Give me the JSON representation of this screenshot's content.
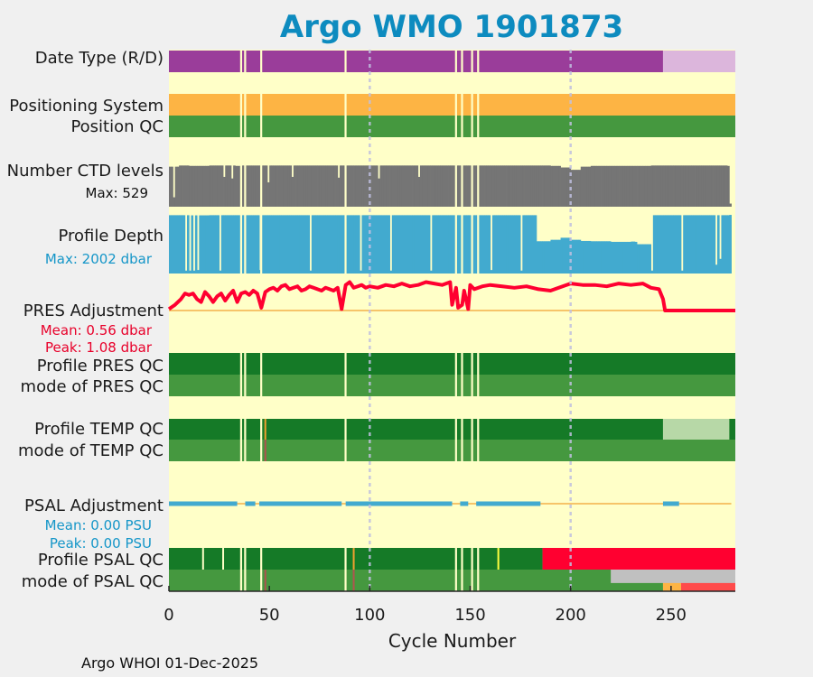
{
  "chart_data": {
    "type": "heatmap",
    "title": "Argo WMO 1901873",
    "xlabel": "Cycle Number",
    "xlim": [
      0,
      282
    ],
    "xticks": [
      0,
      50,
      100,
      150,
      200,
      250
    ],
    "dashed_gridlines_x": [
      100,
      200
    ],
    "footer": "Argo WHOI 01-Dec-2025",
    "missing_cycles": [
      35,
      37,
      45,
      87,
      142,
      145,
      150,
      153
    ],
    "colors": {
      "background": "#ffffc8",
      "figure_bg": "#f0f0f0",
      "title": "#0d8bbf",
      "delayed_mode": "#9a3d9a",
      "realtime_mode": "#dcb6dc",
      "positioning": "#fdb444",
      "qc_good": "#45983f",
      "qc_profile_A": "#157a27",
      "qc_profile_light": "#b7d8a7",
      "qc_bad": "#ff0030",
      "qc_probably_bad": "#f0a030",
      "qc_grey": "#c0c0c0",
      "qc_orange": "#fdb444",
      "qc_red_light": "#ff4b4b",
      "ctd": "#757575",
      "depth": "#42aacf",
      "pres_adj": "#ff0030",
      "psal_adj": "#42aacf",
      "zero_line": "#f0a030",
      "grid": "#c0c0e0"
    },
    "rows": {
      "date_type": {
        "label": "Date Type (R/D)",
        "segments": [
          {
            "from": 0,
            "to": 246,
            "value": "D"
          },
          {
            "from": 246,
            "to": 282,
            "value": "R"
          }
        ]
      },
      "positioning_system": {
        "label": "Positioning System",
        "segments": [
          {
            "from": 0,
            "to": 282,
            "value": "GPS"
          }
        ]
      },
      "position_qc": {
        "label": "Position QC",
        "segments": [
          {
            "from": 0,
            "to": 282,
            "value": "1"
          }
        ]
      },
      "ctd_levels": {
        "label": "Number CTD levels",
        "max_text": "Max: 529",
        "max": 529,
        "cycles": [
          0,
          5,
          10,
          20,
          33,
          36,
          40,
          46,
          50,
          60,
          70,
          80,
          90,
          100,
          110,
          120,
          130,
          140,
          146,
          155,
          160,
          170,
          180,
          185,
          190,
          195,
          200,
          205,
          210,
          220,
          230,
          240,
          245,
          250,
          260,
          270,
          278,
          279
        ],
        "values": [
          510,
          525,
          520,
          525,
          520,
          525,
          525,
          525,
          525,
          525,
          525,
          525,
          525,
          525,
          525,
          525,
          525,
          525,
          525,
          525,
          525,
          525,
          525,
          525,
          520,
          500,
          470,
          510,
          520,
          520,
          520,
          525,
          525,
          525,
          525,
          525,
          520,
          40
        ],
        "dips": [
          {
            "cycle": 2,
            "value": 120
          },
          {
            "cycle": 27,
            "value": 380
          },
          {
            "cycle": 31,
            "value": 360
          },
          {
            "cycle": 49,
            "value": 310
          },
          {
            "cycle": 61,
            "value": 380
          },
          {
            "cycle": 84,
            "value": 370
          },
          {
            "cycle": 104,
            "value": 360
          },
          {
            "cycle": 124,
            "value": 380
          }
        ]
      },
      "profile_depth": {
        "label": "Profile Depth",
        "max_text": "Max: 2002 dbar",
        "max": 2002,
        "cycles": [
          0,
          5,
          10,
          20,
          40,
          60,
          80,
          100,
          120,
          140,
          160,
          180,
          182,
          183,
          185,
          190,
          195,
          200,
          205,
          210,
          220,
          230,
          232,
          233,
          240,
          250,
          260,
          270,
          276,
          278,
          279
        ],
        "values": [
          1990,
          1990,
          1985,
          1990,
          1990,
          1990,
          1990,
          1990,
          1990,
          1990,
          1990,
          1990,
          1990,
          1100,
          1100,
          1150,
          1220,
          1150,
          1110,
          1100,
          1080,
          1090,
          1080,
          1000,
          1990,
          1990,
          1990,
          1990,
          1990,
          1990,
          2000
        ],
        "dips": [
          {
            "cycle": 8,
            "value": 100
          },
          {
            "cycle": 10,
            "value": 100
          },
          {
            "cycle": 12,
            "value": 100
          },
          {
            "cycle": 14,
            "value": 120
          },
          {
            "cycle": 25,
            "value": 100
          },
          {
            "cycle": 45,
            "value": 120
          },
          {
            "cycle": 70,
            "value": 100
          },
          {
            "cycle": 95,
            "value": 100
          },
          {
            "cycle": 110,
            "value": 100
          },
          {
            "cycle": 130,
            "value": 100
          },
          {
            "cycle": 160,
            "value": 120
          },
          {
            "cycle": 175,
            "value": 100
          },
          {
            "cycle": 240,
            "value": 100
          },
          {
            "cycle": 255,
            "value": 100
          },
          {
            "cycle": 272,
            "value": 300
          },
          {
            "cycle": 274,
            "value": 500
          }
        ]
      },
      "pres_adjustment": {
        "label": "PRES Adjustment",
        "mean_text": "Mean: 0.56 dbar",
        "peak_text": "Peak: 1.08 dbar",
        "mean": 0.56,
        "peak": 1.08,
        "cycles": [
          0,
          3,
          6,
          8,
          10,
          12,
          14,
          16,
          18,
          20,
          22,
          24,
          26,
          28,
          30,
          32,
          34,
          36,
          38,
          40,
          42,
          44,
          46,
          48,
          50,
          52,
          54,
          56,
          58,
          60,
          62,
          64,
          66,
          68,
          70,
          72,
          74,
          76,
          78,
          80,
          82,
          84,
          86,
          88,
          90,
          92,
          94,
          96,
          98,
          100,
          104,
          108,
          112,
          116,
          120,
          124,
          128,
          132,
          136,
          140,
          141,
          143,
          144,
          146,
          147,
          149,
          150,
          152,
          156,
          160,
          166,
          172,
          178,
          184,
          190,
          196,
          200,
          206,
          212,
          218,
          224,
          230,
          236,
          240,
          244,
          246,
          247,
          250,
          260,
          270,
          282
        ],
        "values": [
          0.05,
          0.2,
          0.4,
          0.6,
          0.55,
          0.6,
          0.4,
          0.3,
          0.65,
          0.5,
          0.3,
          0.5,
          0.6,
          0.35,
          0.55,
          0.7,
          0.3,
          0.6,
          0.65,
          0.55,
          0.7,
          0.6,
          0.1,
          0.65,
          0.75,
          0.8,
          0.7,
          0.85,
          0.9,
          0.75,
          0.8,
          0.85,
          0.7,
          0.75,
          0.85,
          0.8,
          0.75,
          0.7,
          0.8,
          0.75,
          0.7,
          0.8,
          0.05,
          0.9,
          1.0,
          0.8,
          0.85,
          0.9,
          0.8,
          0.85,
          0.8,
          0.9,
          0.85,
          0.95,
          0.85,
          0.9,
          1.0,
          0.95,
          0.9,
          1.0,
          0.2,
          0.8,
          0.1,
          0.2,
          0.7,
          0.05,
          0.9,
          0.75,
          0.85,
          0.9,
          0.85,
          0.8,
          0.85,
          0.75,
          0.7,
          0.85,
          0.95,
          0.9,
          0.9,
          0.85,
          0.95,
          0.9,
          0.95,
          0.8,
          0.75,
          0.4,
          0.0,
          0.0,
          0.0,
          0.0,
          0.0
        ]
      },
      "profile_pres_qc": {
        "label": "Profile PRES QC",
        "segments": [
          {
            "from": 0,
            "to": 282,
            "value": "A"
          }
        ]
      },
      "mode_pres_qc": {
        "label": "mode of PRES QC",
        "segments": [
          {
            "from": 0,
            "to": 282,
            "value": "1"
          }
        ]
      },
      "profile_temp_qc": {
        "label": "Profile TEMP QC",
        "segments": [
          {
            "from": 0,
            "to": 246,
            "value": "A"
          },
          {
            "from": 246,
            "to": 279,
            "value": "light"
          },
          {
            "from": 279,
            "to": 282,
            "value": "A"
          }
        ],
        "markers": [
          {
            "cycle": 48,
            "color": "#f0a030"
          }
        ]
      },
      "mode_temp_qc": {
        "label": "mode of TEMP QC",
        "segments": [
          {
            "from": 0,
            "to": 282,
            "value": "1"
          }
        ],
        "markers": [
          {
            "cycle": 48,
            "color": "#b0544f"
          }
        ]
      },
      "psal_adjustment": {
        "label": "PSAL Adjustment",
        "mean_text": "Mean: 0.00 PSU",
        "peak_text": "Peak: 0.00 PSU",
        "mean": 0.0,
        "peak": 0.0,
        "bands": [
          {
            "from": 0,
            "to": 34
          },
          {
            "from": 38,
            "to": 43
          },
          {
            "from": 45,
            "to": 86
          },
          {
            "from": 88,
            "to": 141
          },
          {
            "from": 145,
            "to": 149
          },
          {
            "from": 153,
            "to": 185
          },
          {
            "from": 246,
            "to": 254
          }
        ]
      },
      "profile_psal_qc": {
        "label": "Profile PSAL QC",
        "segments": [
          {
            "from": 0,
            "to": 186,
            "value": "A"
          },
          {
            "from": 186,
            "to": 282,
            "value": "F"
          }
        ],
        "markers": [
          {
            "cycle": 17,
            "color": "#ffffc8"
          },
          {
            "cycle": 27,
            "color": "#ffffc8"
          },
          {
            "cycle": 92,
            "color": "#f0a030"
          },
          {
            "cycle": 164,
            "color": "#ffff40"
          }
        ]
      },
      "mode_psal_qc": {
        "label": "mode of PSAL QC",
        "segments": [
          {
            "from": 0,
            "to": 246,
            "value": "1"
          },
          {
            "from": 246,
            "to": 255,
            "value": "3"
          },
          {
            "from": 255,
            "to": 282,
            "value": "4"
          }
        ],
        "overlay": {
          "from": 220,
          "to": 282,
          "value": "grey"
        },
        "markers": [
          {
            "cycle": 48,
            "color": "#b0544f"
          },
          {
            "cycle": 92,
            "color": "#b0544f"
          }
        ]
      }
    }
  }
}
